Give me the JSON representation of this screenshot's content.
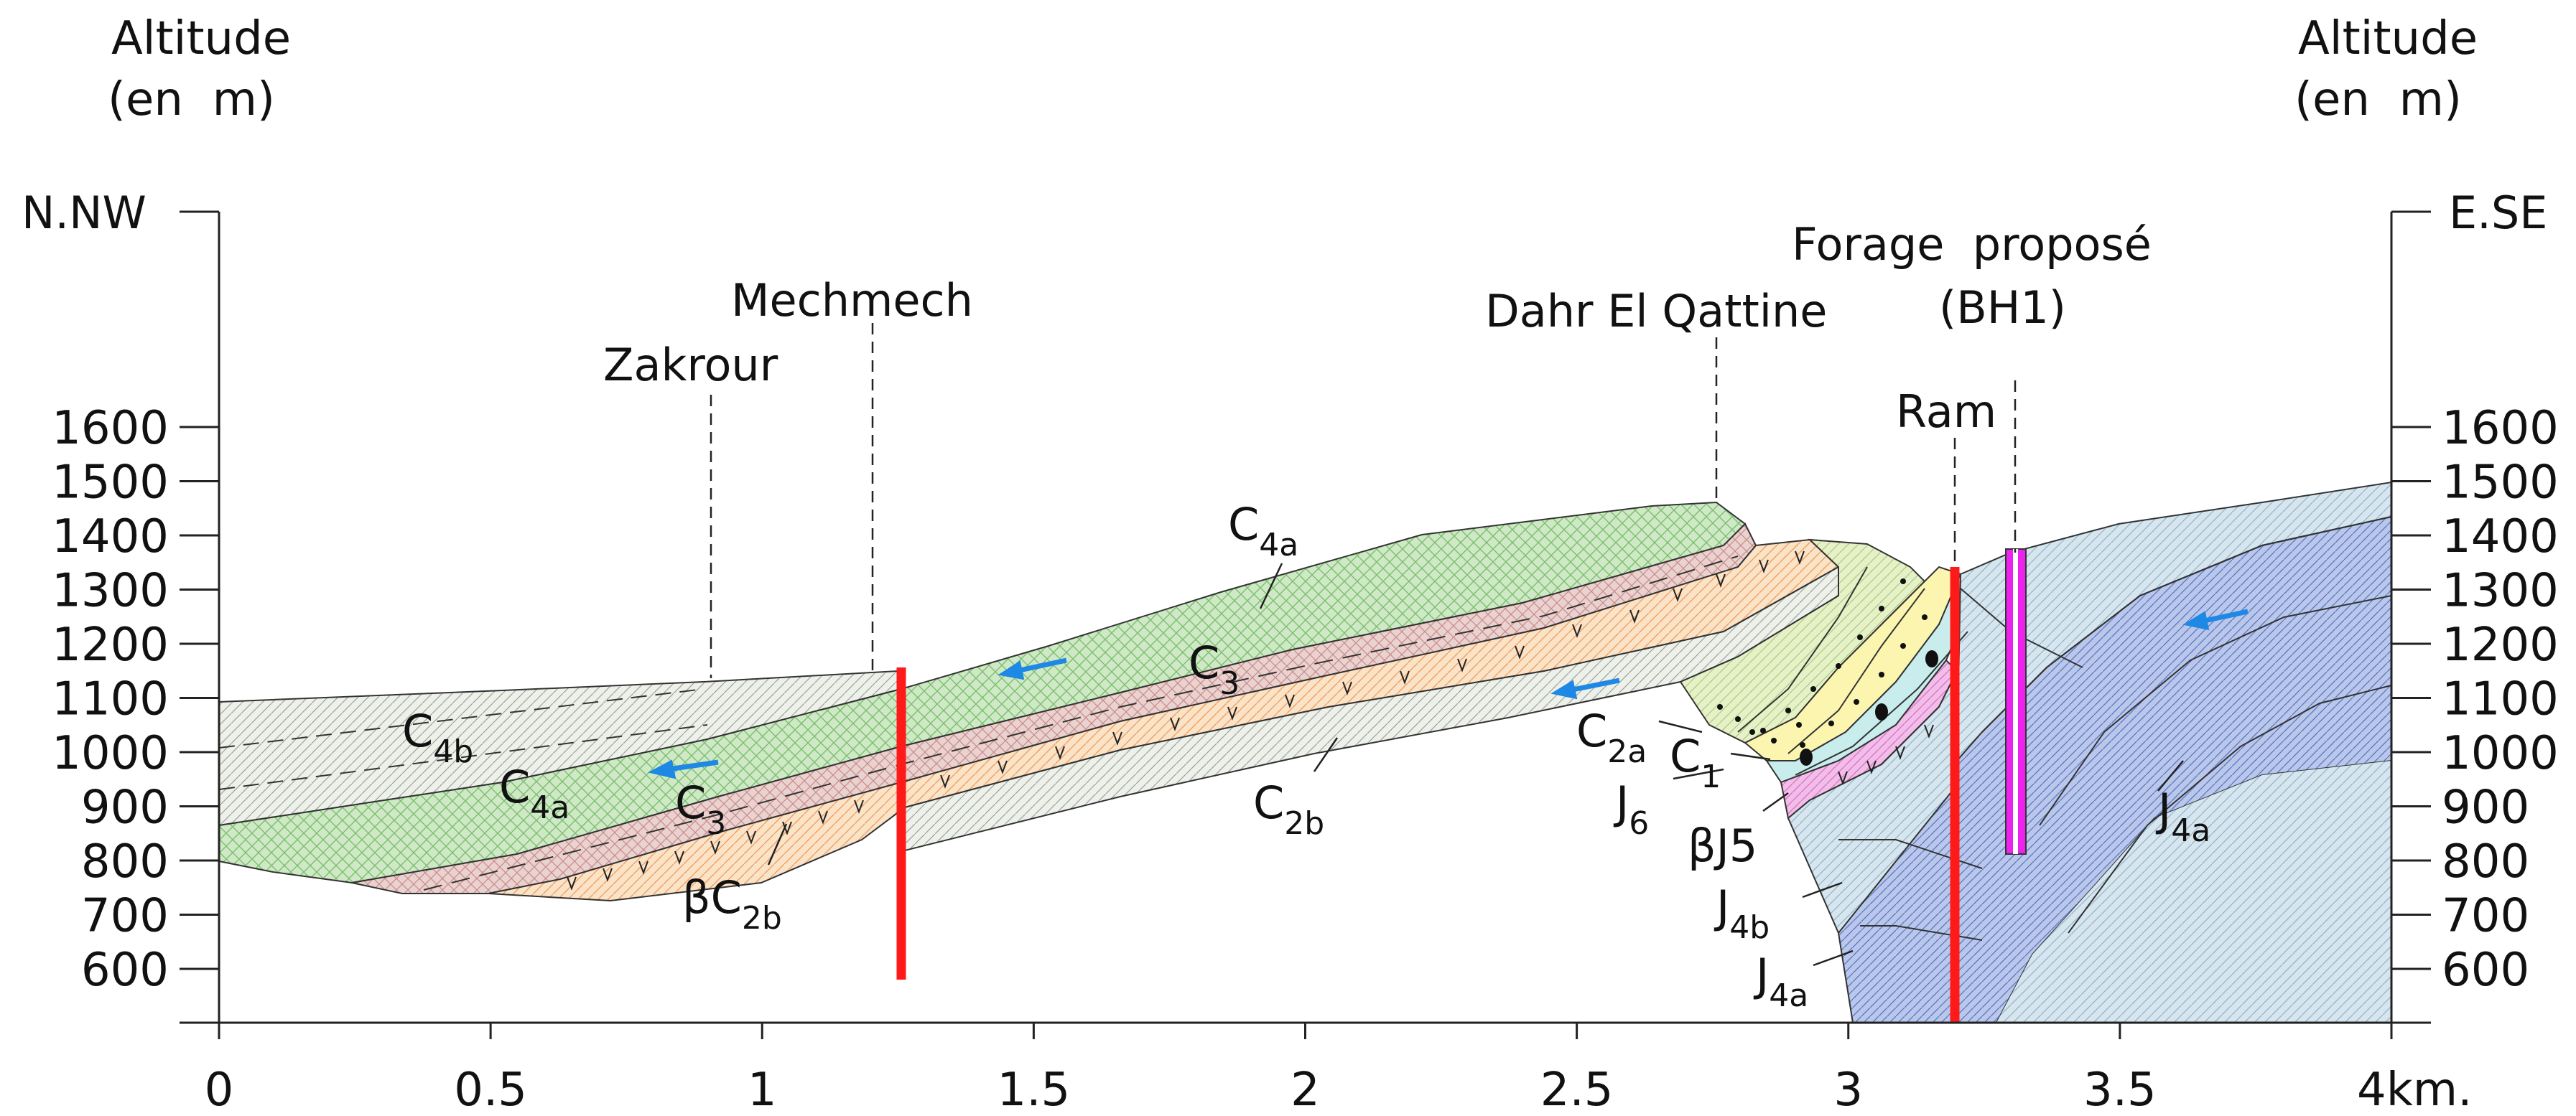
{
  "axes": {
    "left_title_line1": "Altitude",
    "left_title_line2": "(en  m)",
    "right_title_line1": "Altitude",
    "right_title_line2": "(en  m)",
    "left_orientation": "N.NW",
    "right_orientation": "E.SE",
    "y_ticks": [
      "1600",
      "1500",
      "1400",
      "1300",
      "1200",
      "1100",
      "1000",
      "900",
      "800",
      "700",
      "600"
    ],
    "x_ticks": [
      "0",
      "0.5",
      "1",
      "1.5",
      "2",
      "2.5",
      "3",
      "3.5",
      "4km."
    ]
  },
  "places": {
    "zakrour": "Zakrour",
    "mechmech": "Mechmech",
    "dahr_el_qattine": "Dahr El Qattine",
    "forage_line1": "Forage  proposé",
    "forage_line2": "(BH1)",
    "ram": "Ram"
  },
  "formations": {
    "c4b_left": {
      "main": "C",
      "sub": "4b"
    },
    "c4a_left": {
      "main": "C",
      "sub": "4a"
    },
    "c3_left": {
      "main": "C",
      "sub": "3"
    },
    "bc2b": {
      "main": "βC",
      "sub": "2b"
    },
    "c4a_top": {
      "main": "C",
      "sub": "4a"
    },
    "c3_mid": {
      "main": "C",
      "sub": "3"
    },
    "c2b": {
      "main": "C",
      "sub": "2b"
    },
    "c2a": {
      "main": "C",
      "sub": "2a"
    },
    "c1": {
      "main": "C",
      "sub": "1"
    },
    "j6": {
      "main": "J",
      "sub": "6"
    },
    "bj5": {
      "main": "βJ5"
    },
    "j4b": {
      "main": "J",
      "sub": "4b"
    },
    "j4a_low": {
      "main": "J",
      "sub": "4a"
    },
    "j4a_right": {
      "main": "J",
      "sub": "4a"
    }
  },
  "colors": {
    "c4_green": "#cfe8c6",
    "c3_pink": "#ead2d0",
    "c2b_orange": "#f8d6b2",
    "c2a_yellowgreen": "#e4f0c4",
    "c1_yellow": "#fbf5b0",
    "j6_cyan": "#c9ecec",
    "bj5_magenta": "#f2b6e6",
    "j4_blue": "#b5c5e8",
    "j_lightblue": "#d3e3ef",
    "fault_red": "#ff1a1a",
    "borehole_magenta": "#ee22ee",
    "flow_arrow_blue": "#1e88e5"
  }
}
